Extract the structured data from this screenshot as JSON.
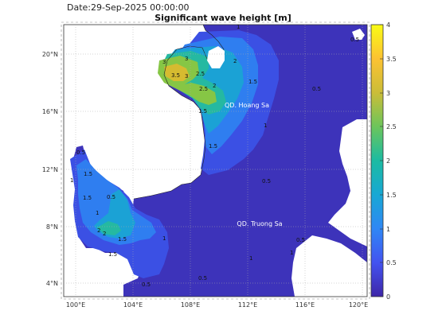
{
  "header": {
    "date_label": "Date:29-Sep-2025 00:00:00",
    "title": "Significant wave height [m]"
  },
  "map": {
    "x_ticks": [
      "100°E",
      "104°E",
      "108°E",
      "112°E",
      "116°E",
      "120°E"
    ],
    "y_ticks": [
      "20°N",
      "16°N",
      "12°N",
      "8°N",
      "4°N"
    ],
    "place_labels": [
      "QD. Hoang Sa",
      "QD. Truong Sa"
    ],
    "contour_labels": [
      "3",
      "3",
      "3.5",
      "3",
      "2.5",
      "2.5",
      "2",
      "2",
      "1.5",
      "1",
      "0.5",
      "0.5",
      "1.5",
      "1.5",
      "1",
      "0.5",
      "1.5",
      "1.5",
      "1",
      "2",
      "1.5",
      "2",
      "1.5",
      "1",
      "1",
      "1",
      "0.5",
      "0.5",
      "1",
      "0.5",
      "0.5",
      "0.5"
    ],
    "colors": {
      "land": "#ffffff",
      "wave_0_5": "#3d33ba",
      "wave_1": "#3b50e4",
      "wave_1_5": "#2f7ef0",
      "wave_2": "#1ba2d5",
      "wave_2_5": "#25b9a1",
      "wave_3": "#86c645",
      "wave_3_5": "#d6bb30",
      "wave_4": "#fbbe2d"
    }
  },
  "colorbar": {
    "ticks": [
      "4",
      "3.5",
      "3",
      "2.5",
      "2",
      "1.5",
      "1",
      "0.5",
      "0"
    ],
    "colors": [
      "#3e26a8",
      "#4353f0",
      "#2f87f5",
      "#18a8d4",
      "#1bbba2",
      "#6cc55b",
      "#cbbd38",
      "#fcc232",
      "#f9fb15"
    ]
  }
}
